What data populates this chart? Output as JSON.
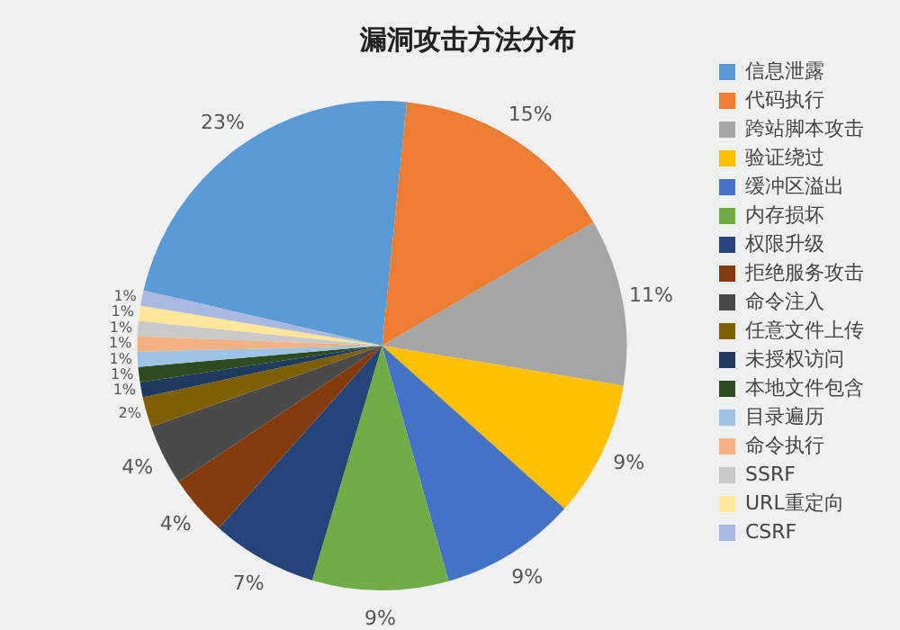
{
  "chart_data": {
    "type": "pie",
    "title": "漏洞攻击方法分布",
    "categories": [
      "信息泄露",
      "代码执行",
      "跨站脚本攻击",
      "验证绕过",
      "缓冲区溢出",
      "内存损坏",
      "权限升级",
      "拒绝服务攻击",
      "命令注入",
      "任意文件上传",
      "未授权访问",
      "本地文件包含",
      "目录遍历",
      "命令执行",
      "SSRF",
      "URL重定向",
      "CSRF"
    ],
    "values": [
      23,
      15,
      11,
      9,
      9,
      9,
      7,
      4,
      4,
      2,
      1,
      1,
      1,
      1,
      1,
      1,
      1
    ],
    "colors": [
      "#5b9bd5",
      "#ed7d31",
      "#a5a5a5",
      "#ffc000",
      "#4472c4",
      "#70ad47",
      "#264478",
      "#843c0c",
      "#4a4a4a",
      "#7f6000",
      "#1f3a5f",
      "#2e4a1f",
      "#9dc3e6",
      "#f4b183",
      "#c9c9c9",
      "#ffe699",
      "#a9b8e0"
    ],
    "value_labels": [
      "23%",
      "15%",
      "11%",
      "9%",
      "9%",
      "9%",
      "7%",
      "4%",
      "4%",
      "2%",
      "1%",
      "1%",
      "1%",
      "1%",
      "1%",
      "1%",
      "1%"
    ],
    "legend": "right"
  }
}
